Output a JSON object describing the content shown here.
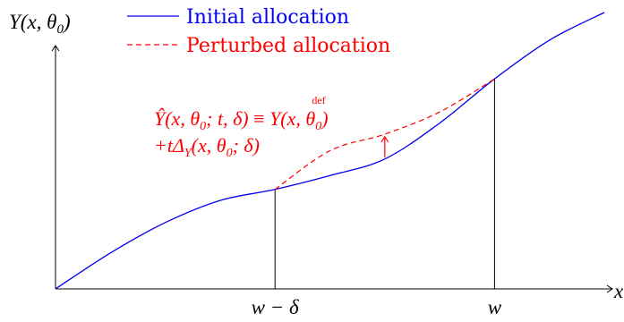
{
  "chart_data": {
    "type": "line",
    "title": "",
    "xlabel": "x",
    "ylabel": "Y(x, θ0)",
    "grid": false,
    "legend": "top-right",
    "x_ticks": [
      {
        "value": 0.4,
        "label": "w − δ"
      },
      {
        "value": 0.8,
        "label": "w"
      }
    ],
    "xlim": [
      0,
      1
    ],
    "ylim": [
      0,
      1
    ],
    "series": [
      {
        "name": "Initial allocation",
        "style": "solid",
        "color": "#0000ee",
        "x": [
          0.0,
          0.1,
          0.2,
          0.3,
          0.4,
          0.5,
          0.6,
          0.7,
          0.8,
          0.9,
          1.0
        ],
        "y": [
          0.0,
          0.13,
          0.24,
          0.32,
          0.36,
          0.41,
          0.47,
          0.6,
          0.76,
          0.9,
          1.0
        ]
      },
      {
        "name": "Perturbed allocation",
        "style": "dashed",
        "color": "#ff0000",
        "x": [
          0.4,
          0.5,
          0.6,
          0.7,
          0.8
        ],
        "y": [
          0.36,
          0.5,
          0.56,
          0.64,
          0.76
        ]
      }
    ],
    "annotations": {
      "line1": "Ŷ(x, θ0; t, δ) =def Y(x, θ0)",
      "line2": "+tΔY(x, θ0; δ)",
      "arrow_x": 0.6
    }
  }
}
